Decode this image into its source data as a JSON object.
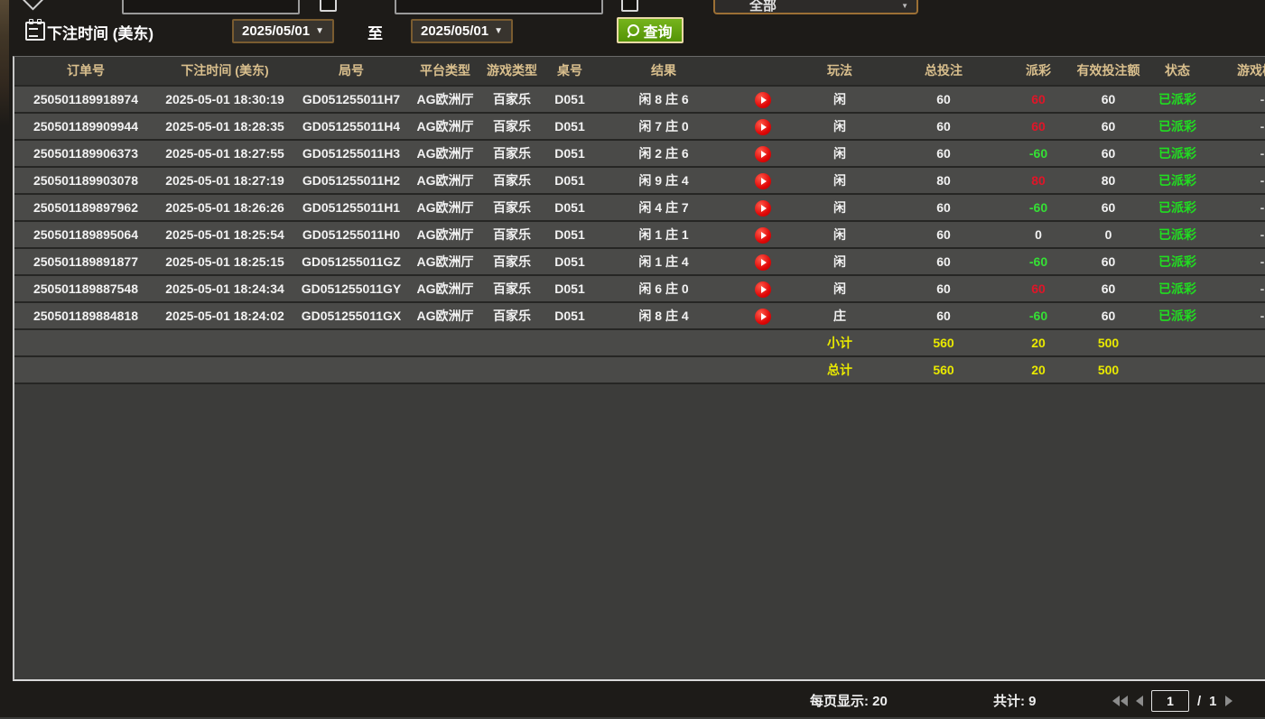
{
  "filters": {
    "top_dropdown_value": "全部",
    "bet_time_label": "下注时间 (美东)",
    "date_from": "2025/05/01",
    "to_label": "至",
    "date_to": "2025/05/01",
    "query_label": "查询",
    "dropdown_arrow": "▼"
  },
  "table": {
    "columns": [
      "订单号",
      "下注时间 (美东)",
      "局号",
      "平台类型",
      "游戏类型",
      "桌号",
      "结果",
      "",
      "玩法",
      "总投注",
      "派彩",
      "有效投注额",
      "状态",
      "游戏模式"
    ],
    "rows": [
      {
        "order": "250501189918974",
        "time": "2025-05-01 18:30:19",
        "round": "GD051255011H7",
        "platform": "AG欧洲厅",
        "game": "百家乐",
        "table": "D051",
        "result": "闲 8 庄 6",
        "play_type": "闲",
        "total_bet": "60",
        "payout": "60",
        "payout_class": "pos",
        "valid_bet": "60",
        "status": "已派彩",
        "mode": "-"
      },
      {
        "order": "250501189909944",
        "time": "2025-05-01 18:28:35",
        "round": "GD051255011H4",
        "platform": "AG欧洲厅",
        "game": "百家乐",
        "table": "D051",
        "result": "闲 7 庄 0",
        "play_type": "闲",
        "total_bet": "60",
        "payout": "60",
        "payout_class": "pos",
        "valid_bet": "60",
        "status": "已派彩",
        "mode": "-"
      },
      {
        "order": "250501189906373",
        "time": "2025-05-01 18:27:55",
        "round": "GD051255011H3",
        "platform": "AG欧洲厅",
        "game": "百家乐",
        "table": "D051",
        "result": "闲 2 庄 6",
        "play_type": "闲",
        "total_bet": "60",
        "payout": "-60",
        "payout_class": "neg",
        "valid_bet": "60",
        "status": "已派彩",
        "mode": "-"
      },
      {
        "order": "250501189903078",
        "time": "2025-05-01 18:27:19",
        "round": "GD051255011H2",
        "platform": "AG欧洲厅",
        "game": "百家乐",
        "table": "D051",
        "result": "闲 9 庄 4",
        "play_type": "闲",
        "total_bet": "80",
        "payout": "80",
        "payout_class": "pos",
        "valid_bet": "80",
        "status": "已派彩",
        "mode": "-"
      },
      {
        "order": "250501189897962",
        "time": "2025-05-01 18:26:26",
        "round": "GD051255011H1",
        "platform": "AG欧洲厅",
        "game": "百家乐",
        "table": "D051",
        "result": "闲 4 庄 7",
        "play_type": "闲",
        "total_bet": "60",
        "payout": "-60",
        "payout_class": "neg",
        "valid_bet": "60",
        "status": "已派彩",
        "mode": "-"
      },
      {
        "order": "250501189895064",
        "time": "2025-05-01 18:25:54",
        "round": "GD051255011H0",
        "platform": "AG欧洲厅",
        "game": "百家乐",
        "table": "D051",
        "result": "闲 1 庄 1",
        "play_type": "闲",
        "total_bet": "60",
        "payout": "0",
        "payout_class": "zero",
        "valid_bet": "0",
        "status": "已派彩",
        "mode": "-"
      },
      {
        "order": "250501189891877",
        "time": "2025-05-01 18:25:15",
        "round": "GD051255011GZ",
        "platform": "AG欧洲厅",
        "game": "百家乐",
        "table": "D051",
        "result": "闲 1 庄 4",
        "play_type": "闲",
        "total_bet": "60",
        "payout": "-60",
        "payout_class": "neg",
        "valid_bet": "60",
        "status": "已派彩",
        "mode": "-"
      },
      {
        "order": "250501189887548",
        "time": "2025-05-01 18:24:34",
        "round": "GD051255011GY",
        "platform": "AG欧洲厅",
        "game": "百家乐",
        "table": "D051",
        "result": "闲 6 庄 0",
        "play_type": "闲",
        "total_bet": "60",
        "payout": "60",
        "payout_class": "pos",
        "valid_bet": "60",
        "status": "已派彩",
        "mode": "-"
      },
      {
        "order": "250501189884818",
        "time": "2025-05-01 18:24:02",
        "round": "GD051255011GX",
        "platform": "AG欧洲厅",
        "game": "百家乐",
        "table": "D051",
        "result": "闲 8 庄 4",
        "play_type": "庄",
        "total_bet": "60",
        "payout": "-60",
        "payout_class": "neg",
        "valid_bet": "60",
        "status": "已派彩",
        "mode": "-"
      }
    ],
    "subtotal": {
      "label": "小计",
      "total_bet": "560",
      "payout": "20",
      "valid_bet": "500"
    },
    "grand_total": {
      "label": "总计",
      "total_bet": "560",
      "payout": "20",
      "valid_bet": "500"
    }
  },
  "footer": {
    "page_size_text": "每页显示: 20",
    "total_count_text": "共计: 9",
    "current_page": "1",
    "page_separator": "/",
    "total_pages": "1"
  },
  "colors": {
    "payout_positive": "#e01528",
    "payout_negative": "#35e035",
    "status_paid": "#21dd21",
    "totals_yellow": "#e9e900",
    "header_text": "#d9bf8d",
    "query_button_green": "#5fae0e"
  }
}
